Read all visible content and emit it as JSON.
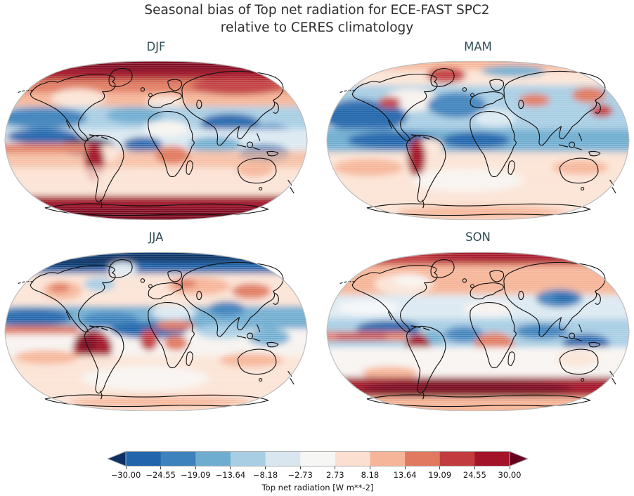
{
  "figure": {
    "title_line1": "Seasonal bias of Top net radiation for ECE-FAST SPC2",
    "title_line2": "relative to CERES climatology",
    "title_color": "#2e2e2e",
    "panel_title_color": "#2f4e56"
  },
  "panels": [
    {
      "id": "djf",
      "label": "DJF"
    },
    {
      "id": "mam",
      "label": "MAM"
    },
    {
      "id": "jja",
      "label": "JJA"
    },
    {
      "id": "son",
      "label": "SON"
    }
  ],
  "colorbar": {
    "tick_labels": [
      "−30.00",
      "−24.55",
      "−19.09",
      "−13.64",
      "−8.18",
      "−2.73",
      "2.73",
      "8.18",
      "13.64",
      "19.09",
      "24.55",
      "30.00"
    ],
    "label": "Top net radiation [W m**-2]",
    "segment_colors": [
      "#2166ac",
      "#3d82bc",
      "#6fadd0",
      "#a8cee4",
      "#d9e6ef",
      "#f6f6f5",
      "#fbdfd0",
      "#f6b598",
      "#e0795f",
      "#c23c3f",
      "#a31329"
    ],
    "under_color": "#0d3064",
    "over_color": "#67001f",
    "outline_color": "#b0b0b0",
    "tick_color": "#3a3a3a"
  },
  "chart_data": {
    "type": "heatmap",
    "title": "Seasonal bias of Top net radiation for ECE-FAST SPC2 relative to CERES climatology",
    "variable": "Top net radiation",
    "units": "W m**-2",
    "projection": "Robinson world maps with black coastlines",
    "colormap": "RdBu_r, discrete 11 bins, extended with arrows on both ends",
    "levels": [
      -30.0,
      -24.55,
      -19.09,
      -13.64,
      -8.18,
      -2.73,
      2.73,
      8.18,
      13.64,
      19.09,
      24.55,
      30.0
    ],
    "value_range": [
      -30,
      30
    ],
    "legend_position": "bottom horizontal colorbar",
    "subplots": [
      {
        "label": "DJF",
        "position": "top-left",
        "pattern": "Dark red (>30) over Arctic cap and Antarctic cap; red over NH high latitudes and Siberia; blue band over NH subtropical oceans with dark blue over Tibet/China; dark blue equatorial east Pacific; red stripe south of equator in west Pacific; dark red along Andes; pale red southern oceans"
      },
      {
        "label": "MAM",
        "position": "top-right",
        "pattern": "Light red top edge and Greenland red spot; widespread blue over NH with strong dark blue North Pacific and North Atlantic; dark blue equatorial Pacific-Atlantic-Africa band; dark red along Andes; pale pink Southern Hemisphere and near-white far south"
      },
      {
        "label": "JJA",
        "position": "bottom-left",
        "pattern": "Dark blue Arctic cap; red western North America and Eurasia patches; dark blue subtropical NH band and equatorial Atlantic/Africa; red ITCZ stripe west Pacific; strong dark red off Peru coast and west Africa; red Sahel; pale pink southern oceans, near-white far south"
      },
      {
        "label": "SON",
        "position": "bottom-right",
        "pattern": "Red Arctic cap; pale red NH continents and oceans; blue patch central Asia; blue tropical bands with dark blue east of Australia; red stripe south of equator in Pacific; dark red off Peru and over Africa; dark red circumpolar southern-ocean band near Antarctica; pink Antarctic interior"
      }
    ]
  }
}
